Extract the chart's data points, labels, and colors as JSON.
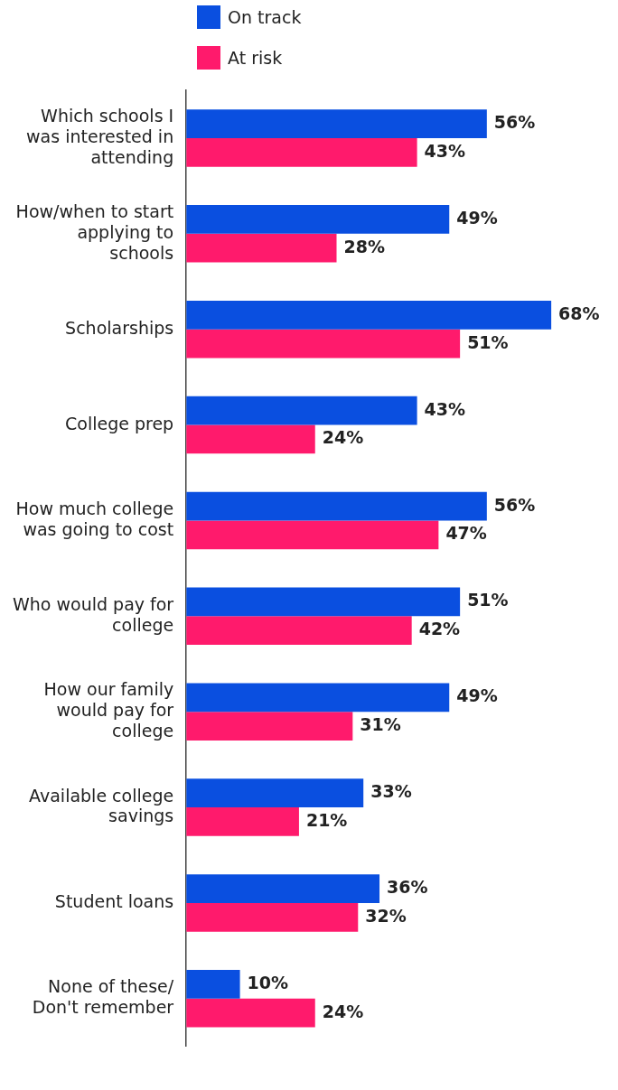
{
  "chart_data": {
    "type": "bar",
    "orientation": "horizontal",
    "categories": [
      "Which schools I was interested in attending",
      "How/when to start applying to schools",
      "Scholarships",
      "College prep",
      "How much college was going to cost",
      "Who would pay for college",
      "How our family would pay for college",
      "Available college savings",
      "Student loans",
      "None of these/ Don't remember"
    ],
    "series": [
      {
        "name": "On track",
        "color": "#0a4fe0",
        "values": [
          56,
          49,
          68,
          43,
          56,
          51,
          49,
          33,
          36,
          10
        ],
        "value_labels": [
          "56%",
          "49%",
          "68%",
          "43%",
          "56%",
          "51%",
          "49%",
          "33%",
          "36%",
          "10%"
        ]
      },
      {
        "name": "At risk",
        "color": "#ff1a6c",
        "values": [
          43,
          28,
          51,
          24,
          47,
          42,
          31,
          21,
          32,
          24
        ],
        "value_labels": [
          "43%",
          "28%",
          "51%",
          "24%",
          "47%",
          "42%",
          "31%",
          "21%",
          "32%",
          "24%"
        ]
      }
    ],
    "legend": "top"
  }
}
